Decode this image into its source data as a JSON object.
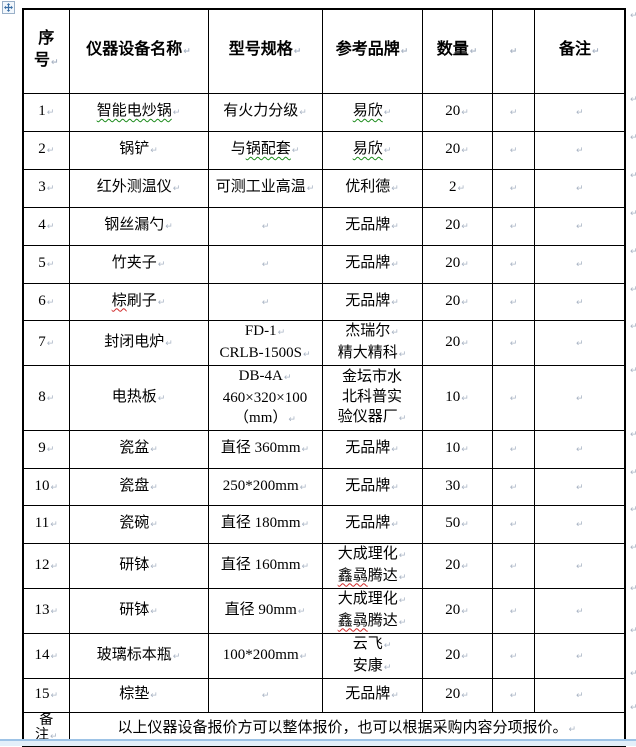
{
  "window": {
    "background": "#ffffff",
    "bottom_strip_color": "#e3f0fa",
    "bottom_strip_line_color": "#9dc3e6"
  },
  "formatting_marks": {
    "cell_end_mark": "↵",
    "end_of_row_mark": "↵",
    "mark_color": "#a9b4c4"
  },
  "spellcheck_colors": {
    "green": "#1a8a1a",
    "red": "#d02a2a"
  },
  "table": {
    "border_color": "#000000",
    "header": {
      "no": [
        {
          "seg": [
            {
              "t": "序"
            }
          ],
          "p": false
        },
        {
          "seg": [
            {
              "t": "号"
            }
          ],
          "p": true
        }
      ],
      "name": "仪器设备名称",
      "spec": "型号规格",
      "brand": "参考品牌",
      "qty": "数量",
      "extra": "",
      "remark": "备注"
    },
    "rows": [
      {
        "no": "1",
        "name": [
          {
            "seg": [
              {
                "t": "智能电炒锅",
                "u": "green"
              }
            ]
          }
        ],
        "spec": [
          {
            "seg": [
              {
                "t": "有火力分级"
              }
            ]
          }
        ],
        "brand": [
          {
            "seg": [
              {
                "t": "易欣",
                "u": "green"
              }
            ]
          }
        ],
        "qty": "20",
        "extra": "",
        "remark": ""
      },
      {
        "no": "2",
        "name": [
          {
            "seg": [
              {
                "t": "锅铲"
              }
            ]
          }
        ],
        "spec": [
          {
            "seg": [
              {
                "t": "与"
              },
              {
                "t": "锅配套",
                "u": "green"
              }
            ]
          }
        ],
        "brand": [
          {
            "seg": [
              {
                "t": "易欣",
                "u": "green"
              }
            ]
          }
        ],
        "qty": "20",
        "extra": "",
        "remark": ""
      },
      {
        "no": "3",
        "name": [
          {
            "seg": [
              {
                "t": "红外测温仪"
              }
            ]
          }
        ],
        "spec": [
          {
            "seg": [
              {
                "t": "可测工业高温"
              }
            ]
          }
        ],
        "brand": [
          {
            "seg": [
              {
                "t": "优利德"
              }
            ]
          }
        ],
        "qty": "2",
        "extra": "",
        "remark": ""
      },
      {
        "no": "4",
        "name": [
          {
            "seg": [
              {
                "t": "钢丝漏勺"
              }
            ]
          }
        ],
        "spec": [],
        "brand": [
          {
            "seg": [
              {
                "t": "无品牌"
              }
            ]
          }
        ],
        "qty": "20",
        "extra": "",
        "remark": ""
      },
      {
        "no": "5",
        "name": [
          {
            "seg": [
              {
                "t": "竹夹子"
              }
            ]
          }
        ],
        "spec": [],
        "brand": [
          {
            "seg": [
              {
                "t": "无品牌"
              }
            ]
          }
        ],
        "qty": "20",
        "extra": "",
        "remark": ""
      },
      {
        "no": "6",
        "name": [
          {
            "seg": [
              {
                "t": "棕",
                "u": "red"
              },
              {
                "t": "刷子"
              }
            ]
          }
        ],
        "spec": [],
        "brand": [
          {
            "seg": [
              {
                "t": "无品牌"
              }
            ]
          }
        ],
        "qty": "20",
        "extra": "",
        "remark": ""
      },
      {
        "no": "7",
        "name": [
          {
            "seg": [
              {
                "t": "封闭电炉"
              }
            ]
          }
        ],
        "spec": [
          {
            "seg": [
              {
                "t": "FD-1"
              }
            ]
          },
          {
            "seg": [
              {
                "t": "CRLB-1500S"
              }
            ]
          }
        ],
        "brand": [
          {
            "seg": [
              {
                "t": "杰瑞尔"
              }
            ]
          },
          {
            "seg": [
              {
                "t": "精大精科"
              }
            ]
          }
        ],
        "qty": "20",
        "extra": "",
        "remark": ""
      },
      {
        "no": "8",
        "name": [
          {
            "seg": [
              {
                "t": "电热板"
              }
            ]
          }
        ],
        "spec": [
          {
            "seg": [
              {
                "t": "DB-4A"
              }
            ]
          },
          {
            "seg": [
              {
                "t": "460×320×100"
              }
            ],
            "p": false
          },
          {
            "seg": [
              {
                "t": "（mm）"
              }
            ]
          }
        ],
        "brand": [
          {
            "seg": [
              {
                "t": "金坛市水"
              }
            ],
            "p": false
          },
          {
            "seg": [
              {
                "t": "北科普实"
              }
            ],
            "p": false
          },
          {
            "seg": [
              {
                "t": "验仪器厂"
              }
            ]
          }
        ],
        "qty": "10",
        "extra": "",
        "remark": ""
      },
      {
        "no": "9",
        "name": [
          {
            "seg": [
              {
                "t": "瓷盆"
              }
            ]
          }
        ],
        "spec": [
          {
            "seg": [
              {
                "t": "直径 360mm"
              }
            ]
          }
        ],
        "brand": [
          {
            "seg": [
              {
                "t": "无品牌"
              }
            ]
          }
        ],
        "qty": "10",
        "extra": "",
        "remark": ""
      },
      {
        "no": "10",
        "name": [
          {
            "seg": [
              {
                "t": "瓷盘"
              }
            ]
          }
        ],
        "spec": [
          {
            "seg": [
              {
                "t": "250*200mm"
              }
            ]
          }
        ],
        "brand": [
          {
            "seg": [
              {
                "t": "无品牌"
              }
            ]
          }
        ],
        "qty": "30",
        "extra": "",
        "remark": ""
      },
      {
        "no": "11",
        "name": [
          {
            "seg": [
              {
                "t": "瓷碗"
              }
            ]
          }
        ],
        "spec": [
          {
            "seg": [
              {
                "t": "直径 180mm"
              }
            ]
          }
        ],
        "brand": [
          {
            "seg": [
              {
                "t": "无品牌"
              }
            ]
          }
        ],
        "qty": "50",
        "extra": "",
        "remark": ""
      },
      {
        "no": "12",
        "name": [
          {
            "seg": [
              {
                "t": "研钵"
              }
            ]
          }
        ],
        "spec": [
          {
            "seg": [
              {
                "t": "直径 160mm"
              }
            ]
          }
        ],
        "brand": [
          {
            "seg": [
              {
                "t": "大成理化"
              }
            ]
          },
          {
            "seg": [
              {
                "t": "鑫骉",
                "u": "red"
              },
              {
                "t": "腾达"
              }
            ]
          }
        ],
        "qty": "20",
        "extra": "",
        "remark": ""
      },
      {
        "no": "13",
        "name": [
          {
            "seg": [
              {
                "t": "研钵"
              }
            ]
          }
        ],
        "spec": [
          {
            "seg": [
              {
                "t": "直径 90mm"
              }
            ]
          }
        ],
        "brand": [
          {
            "seg": [
              {
                "t": "大成理化"
              }
            ]
          },
          {
            "seg": [
              {
                "t": "鑫骉",
                "u": "red"
              },
              {
                "t": "腾达"
              }
            ]
          }
        ],
        "qty": "20",
        "extra": "",
        "remark": ""
      },
      {
        "no": "14",
        "name": [
          {
            "seg": [
              {
                "t": "玻璃标本瓶"
              }
            ]
          }
        ],
        "spec": [
          {
            "seg": [
              {
                "t": "100*200mm"
              }
            ]
          }
        ],
        "brand": [
          {
            "seg": [
              {
                "t": "云飞"
              }
            ]
          },
          {
            "seg": [
              {
                "t": "安康"
              }
            ]
          }
        ],
        "qty": "20",
        "extra": "",
        "remark": ""
      },
      {
        "no": "15",
        "name": [
          {
            "seg": [
              {
                "t": "棕垫"
              }
            ]
          }
        ],
        "spec": [],
        "brand": [
          {
            "seg": [
              {
                "t": "无品牌"
              }
            ]
          }
        ],
        "qty": "20",
        "extra": "",
        "remark": ""
      }
    ],
    "note": {
      "label_lines": [
        {
          "seg": [
            {
              "t": "备"
            }
          ],
          "p": false
        },
        {
          "seg": [
            {
              "t": "注"
            }
          ],
          "p": true
        }
      ],
      "text": "以上仪器设备报价方可以整体报价，也可以根据采购内容分项报价。"
    }
  }
}
